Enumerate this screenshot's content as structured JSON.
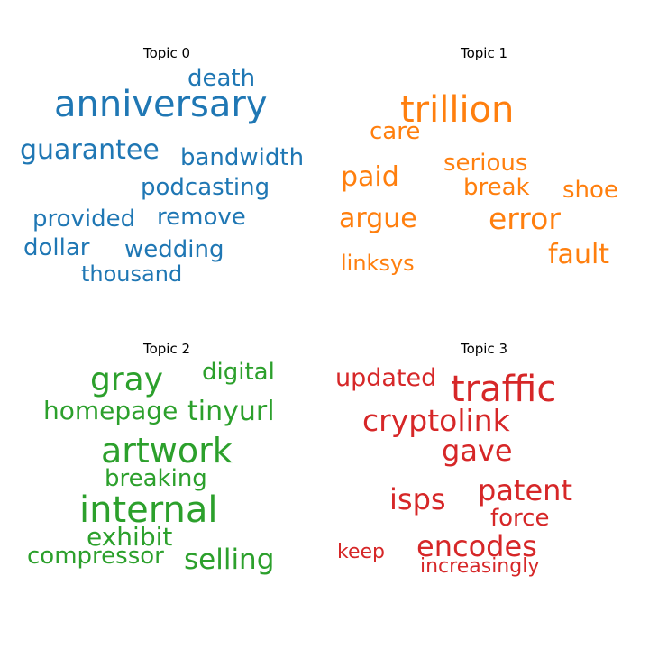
{
  "topics": [
    {
      "title": "Topic 0",
      "color": "#1f77b4",
      "words": [
        "anniversary",
        "death",
        "guarantee",
        "bandwidth",
        "podcasting",
        "provided",
        "remove",
        "dollar",
        "wedding",
        "thousand"
      ]
    },
    {
      "title": "Topic 1",
      "color": "#ff7f0e",
      "words": [
        "trillion",
        "care",
        "serious",
        "paid",
        "break",
        "shoe",
        "argue",
        "error",
        "fault",
        "linksys"
      ]
    },
    {
      "title": "Topic 2",
      "color": "#2ca02c",
      "words": [
        "gray",
        "digital",
        "homepage",
        "tinyurl",
        "artwork",
        "breaking",
        "internal",
        "exhibit",
        "compressor",
        "selling"
      ]
    },
    {
      "title": "Topic 3",
      "color": "#d62728",
      "words": [
        "updated",
        "traffic",
        "cryptolink",
        "gave",
        "patent",
        "isps",
        "force",
        "encodes",
        "keep",
        "increasingly"
      ]
    }
  ]
}
